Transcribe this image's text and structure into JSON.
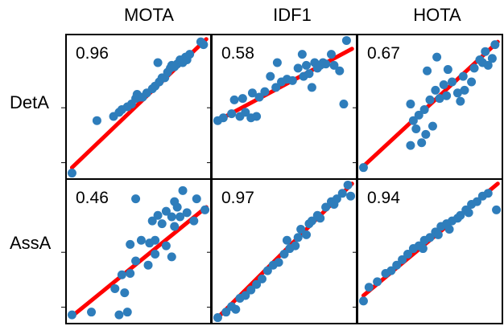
{
  "chart_data": {
    "type": "scatter",
    "columns": [
      "MOTA",
      "IDF1",
      "HOTA"
    ],
    "rows": [
      "DetA",
      "AssA"
    ],
    "xlim": [
      0,
      1
    ],
    "ylim": [
      0,
      1
    ],
    "trend_line_color": "#ff0000",
    "point_color": "#2e7dbb",
    "grid": false,
    "panels": [
      {
        "row": "DetA",
        "col": "MOTA",
        "corr": "0.96",
        "fit": [
          [
            0.02,
            0.06
          ],
          [
            0.99,
            0.99
          ]
        ],
        "points": [
          [
            0.02,
            0.02
          ],
          [
            0.2,
            0.4
          ],
          [
            0.32,
            0.43
          ],
          [
            0.36,
            0.46
          ],
          [
            0.38,
            0.48
          ],
          [
            0.42,
            0.5
          ],
          [
            0.45,
            0.52
          ],
          [
            0.48,
            0.56
          ],
          [
            0.49,
            0.59
          ],
          [
            0.51,
            0.57
          ],
          [
            0.53,
            0.57
          ],
          [
            0.56,
            0.6
          ],
          [
            0.6,
            0.63
          ],
          [
            0.62,
            0.65
          ],
          [
            0.65,
            0.68
          ],
          [
            0.67,
            0.71
          ],
          [
            0.69,
            0.71
          ],
          [
            0.71,
            0.75
          ],
          [
            0.73,
            0.78
          ],
          [
            0.74,
            0.8
          ],
          [
            0.76,
            0.79
          ],
          [
            0.78,
            0.81
          ],
          [
            0.8,
            0.84
          ],
          [
            0.82,
            0.82
          ],
          [
            0.84,
            0.86
          ],
          [
            0.85,
            0.84
          ],
          [
            0.87,
            0.88
          ],
          [
            0.95,
            0.97
          ],
          [
            0.97,
            0.95
          ],
          [
            0.64,
            0.82
          ]
        ]
      },
      {
        "row": "DetA",
        "col": "IDF1",
        "corr": "0.58",
        "fit": [
          [
            0.02,
            0.4
          ],
          [
            0.99,
            0.92
          ]
        ],
        "points": [
          [
            0.02,
            0.4
          ],
          [
            0.06,
            0.42
          ],
          [
            0.12,
            0.45
          ],
          [
            0.18,
            0.43
          ],
          [
            0.22,
            0.46
          ],
          [
            0.26,
            0.42
          ],
          [
            0.3,
            0.43
          ],
          [
            0.14,
            0.55
          ],
          [
            0.2,
            0.56
          ],
          [
            0.27,
            0.6
          ],
          [
            0.32,
            0.57
          ],
          [
            0.36,
            0.61
          ],
          [
            0.4,
            0.72
          ],
          [
            0.44,
            0.64
          ],
          [
            0.48,
            0.68
          ],
          [
            0.52,
            0.7
          ],
          [
            0.56,
            0.69
          ],
          [
            0.6,
            0.78
          ],
          [
            0.64,
            0.72
          ],
          [
            0.66,
            0.8
          ],
          [
            0.68,
            0.74
          ],
          [
            0.7,
            0.64
          ],
          [
            0.72,
            0.82
          ],
          [
            0.74,
            0.78
          ],
          [
            0.76,
            0.8
          ],
          [
            0.78,
            0.82
          ],
          [
            0.8,
            0.81
          ],
          [
            0.84,
            0.88
          ],
          [
            0.86,
            0.8
          ],
          [
            0.9,
            0.76
          ],
          [
            0.93,
            0.52
          ],
          [
            0.95,
            0.98
          ],
          [
            0.63,
            0.88
          ],
          [
            0.45,
            0.82
          ]
        ]
      },
      {
        "row": "DetA",
        "col": "HOTA",
        "corr": "0.67",
        "fit": [
          [
            0.02,
            0.07
          ],
          [
            0.99,
            0.97
          ]
        ],
        "points": [
          [
            0.02,
            0.06
          ],
          [
            0.36,
            0.22
          ],
          [
            0.44,
            0.24
          ],
          [
            0.47,
            0.3
          ],
          [
            0.52,
            0.36
          ],
          [
            0.4,
            0.34
          ],
          [
            0.38,
            0.4
          ],
          [
            0.42,
            0.44
          ],
          [
            0.46,
            0.48
          ],
          [
            0.36,
            0.52
          ],
          [
            0.5,
            0.55
          ],
          [
            0.57,
            0.56
          ],
          [
            0.54,
            0.62
          ],
          [
            0.62,
            0.58
          ],
          [
            0.6,
            0.66
          ],
          [
            0.66,
            0.68
          ],
          [
            0.7,
            0.6
          ],
          [
            0.72,
            0.54
          ],
          [
            0.75,
            0.62
          ],
          [
            0.8,
            0.68
          ],
          [
            0.74,
            0.72
          ],
          [
            0.82,
            0.78
          ],
          [
            0.86,
            0.84
          ],
          [
            0.88,
            0.82
          ],
          [
            0.9,
            0.9
          ],
          [
            0.92,
            0.8
          ],
          [
            0.95,
            0.85
          ],
          [
            0.97,
            0.95
          ],
          [
            0.55,
            0.86
          ],
          [
            0.48,
            0.76
          ],
          [
            0.63,
            0.77
          ]
        ]
      },
      {
        "row": "AssA",
        "col": "MOTA",
        "corr": "0.46",
        "fit": [
          [
            0.02,
            0.03
          ],
          [
            0.99,
            0.82
          ]
        ],
        "points": [
          [
            0.02,
            0.04
          ],
          [
            0.16,
            0.06
          ],
          [
            0.36,
            0.04
          ],
          [
            0.42,
            0.06
          ],
          [
            0.4,
            0.2
          ],
          [
            0.33,
            0.23
          ],
          [
            0.38,
            0.33
          ],
          [
            0.44,
            0.34
          ],
          [
            0.48,
            0.43
          ],
          [
            0.44,
            0.55
          ],
          [
            0.52,
            0.58
          ],
          [
            0.58,
            0.56
          ],
          [
            0.62,
            0.58
          ],
          [
            0.6,
            0.72
          ],
          [
            0.64,
            0.76
          ],
          [
            0.67,
            0.7
          ],
          [
            0.7,
            0.79
          ],
          [
            0.74,
            0.75
          ],
          [
            0.76,
            0.86
          ],
          [
            0.78,
            0.82
          ],
          [
            0.8,
            0.75
          ],
          [
            0.85,
            0.78
          ],
          [
            0.9,
            0.72
          ],
          [
            0.92,
            0.88
          ],
          [
            0.62,
            0.48
          ],
          [
            0.7,
            0.54
          ],
          [
            0.74,
            0.46
          ],
          [
            0.57,
            0.4
          ],
          [
            0.48,
            0.88
          ],
          [
            0.98,
            0.8
          ],
          [
            0.82,
            0.94
          ],
          [
            0.76,
            0.68
          ]
        ]
      },
      {
        "row": "AssA",
        "col": "IDF1",
        "corr": "0.97",
        "fit": [
          [
            0.02,
            0.02
          ],
          [
            0.99,
            0.99
          ]
        ],
        "points": [
          [
            0.02,
            0.02
          ],
          [
            0.08,
            0.06
          ],
          [
            0.12,
            0.1
          ],
          [
            0.15,
            0.08
          ],
          [
            0.18,
            0.16
          ],
          [
            0.22,
            0.18
          ],
          [
            0.26,
            0.22
          ],
          [
            0.3,
            0.26
          ],
          [
            0.34,
            0.3
          ],
          [
            0.38,
            0.36
          ],
          [
            0.42,
            0.4
          ],
          [
            0.46,
            0.42
          ],
          [
            0.5,
            0.48
          ],
          [
            0.54,
            0.52
          ],
          [
            0.58,
            0.54
          ],
          [
            0.6,
            0.6
          ],
          [
            0.62,
            0.66
          ],
          [
            0.66,
            0.62
          ],
          [
            0.68,
            0.7
          ],
          [
            0.7,
            0.72
          ],
          [
            0.74,
            0.76
          ],
          [
            0.76,
            0.74
          ],
          [
            0.8,
            0.82
          ],
          [
            0.84,
            0.86
          ],
          [
            0.86,
            0.84
          ],
          [
            0.88,
            0.88
          ],
          [
            0.92,
            0.92
          ],
          [
            0.96,
            0.98
          ],
          [
            0.98,
            0.9
          ],
          [
            0.52,
            0.58
          ]
        ]
      },
      {
        "row": "AssA",
        "col": "HOTA",
        "corr": "0.94",
        "fit": [
          [
            0.02,
            0.18
          ],
          [
            0.99,
            0.99
          ]
        ],
        "points": [
          [
            0.02,
            0.14
          ],
          [
            0.06,
            0.24
          ],
          [
            0.12,
            0.28
          ],
          [
            0.18,
            0.34
          ],
          [
            0.22,
            0.36
          ],
          [
            0.26,
            0.4
          ],
          [
            0.3,
            0.44
          ],
          [
            0.34,
            0.48
          ],
          [
            0.38,
            0.52
          ],
          [
            0.42,
            0.54
          ],
          [
            0.46,
            0.58
          ],
          [
            0.5,
            0.6
          ],
          [
            0.54,
            0.64
          ],
          [
            0.56,
            0.62
          ],
          [
            0.58,
            0.68
          ],
          [
            0.62,
            0.7
          ],
          [
            0.64,
            0.66
          ],
          [
            0.66,
            0.72
          ],
          [
            0.7,
            0.74
          ],
          [
            0.72,
            0.76
          ],
          [
            0.76,
            0.8
          ],
          [
            0.78,
            0.78
          ],
          [
            0.8,
            0.84
          ],
          [
            0.84,
            0.86
          ],
          [
            0.88,
            0.9
          ],
          [
            0.92,
            0.92
          ],
          [
            0.98,
            0.8
          ],
          [
            0.45,
            0.52
          ]
        ]
      }
    ]
  }
}
